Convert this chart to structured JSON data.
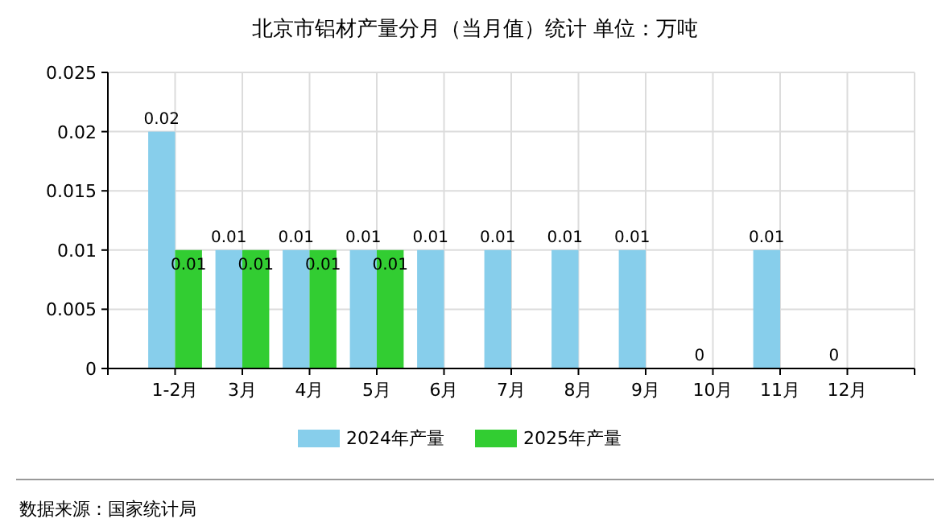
{
  "chart_data": {
    "type": "bar",
    "title": "北京市铝材产量分月（当月值）统计  单位：万吨",
    "categories": [
      "1-2月",
      "3月",
      "4月",
      "5月",
      "6月",
      "7月",
      "8月",
      "9月",
      "10月",
      "11月",
      "12月"
    ],
    "series": [
      {
        "name": "2024年产量",
        "color": "#87ceeb",
        "values": [
          0.02,
          0.01,
          0.01,
          0.01,
          0.01,
          0.01,
          0.01,
          0.01,
          0,
          0.01,
          0
        ]
      },
      {
        "name": "2025年产量",
        "color": "#32cd32",
        "values": [
          0.01,
          0.01,
          0.01,
          0.01,
          null,
          null,
          null,
          null,
          null,
          null,
          null
        ]
      }
    ],
    "ylim": [
      0,
      0.025
    ],
    "yticks": [
      0,
      0.005,
      0.01,
      0.015,
      0.02,
      0.025
    ],
    "grid": true,
    "legend": "bottom",
    "data_labels": true,
    "annotations": [
      "数据来源：国家统计局"
    ]
  }
}
